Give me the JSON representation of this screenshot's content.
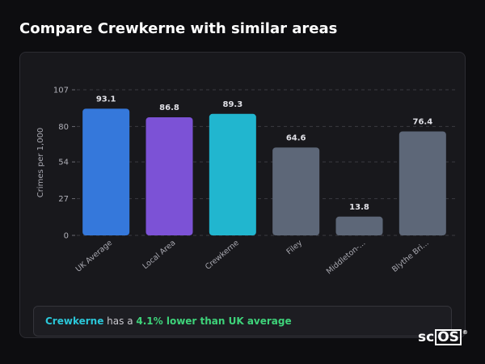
{
  "page": {
    "title": "Compare Crewkerne with similar areas"
  },
  "summary": {
    "area": "Crewkerne",
    "middle": " has a ",
    "highlight": "4.1% lower than UK average"
  },
  "logo": {
    "prefix": "sc",
    "boxed": "OS",
    "mark": "®"
  },
  "colors": {
    "uk": "#3578db",
    "local": "#7c52d6",
    "crewkerne": "#21b6cf",
    "other": "#5d6778",
    "grid": "#3a3a40"
  },
  "chart_data": {
    "type": "bar",
    "ylabel": "Crimes per 1,000",
    "yticks": [
      0,
      27,
      54,
      80,
      107
    ],
    "ylim": [
      0,
      107
    ],
    "grid": true,
    "categories": [
      "UK Average",
      "Local Area",
      "Crewkerne",
      "Filey",
      "Middleton-...",
      "Blythe Bri..."
    ],
    "values": [
      93.1,
      86.8,
      89.3,
      64.6,
      13.8,
      76.4
    ],
    "value_labels": [
      "93.1",
      "86.8",
      "89.3",
      "64.6",
      "13.8",
      "76.4"
    ],
    "bar_colors": [
      "#3578db",
      "#7c52d6",
      "#21b6cf",
      "#5d6778",
      "#5d6778",
      "#5d6778"
    ]
  }
}
